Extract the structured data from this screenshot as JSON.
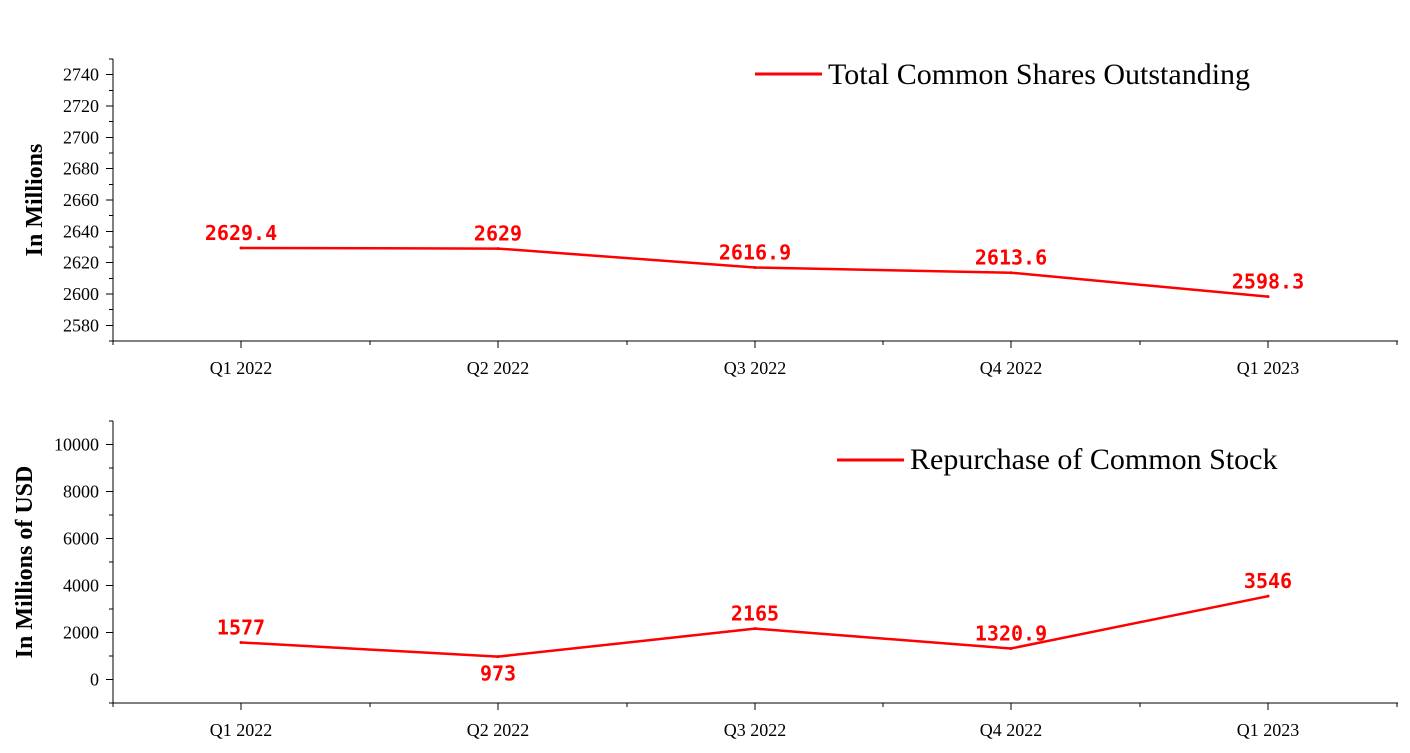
{
  "chart_data": [
    {
      "type": "line",
      "categories": [
        "Q1 2022",
        "Q2 2022",
        "Q3 2022",
        "Q4 2022",
        "Q1 2023"
      ],
      "series": [
        {
          "name": "Total Common Shares Outstanding",
          "values": [
            2629.4,
            2629,
            2616.9,
            2613.6,
            2598.3
          ],
          "color": "#ff0000"
        }
      ],
      "data_labels": [
        "2629.4",
        "2629",
        "2616.9",
        "2613.6",
        "2598.3"
      ],
      "ylabel": "In Millions",
      "yticks": [
        "2580",
        "2600",
        "2620",
        "2640",
        "2660",
        "2680",
        "2700",
        "2720",
        "2740"
      ],
      "ylim": [
        2570,
        2750
      ],
      "grid": false,
      "legend": "top-right"
    },
    {
      "type": "line",
      "categories": [
        "Q1 2022",
        "Q2 2022",
        "Q3 2022",
        "Q4 2022",
        "Q1 2023"
      ],
      "series": [
        {
          "name": "Repurchase of Common Stock",
          "values": [
            1577,
            973,
            2165,
            1320.9,
            3546
          ],
          "color": "#ff0000"
        }
      ],
      "data_labels": [
        "1577",
        "973",
        "2165",
        "1320.9",
        "3546"
      ],
      "ylabel": "In Millions of USD",
      "yticks": [
        "0",
        "2000",
        "4000",
        "6000",
        "8000",
        "10000"
      ],
      "ylim": [
        -1000,
        11000
      ],
      "grid": false,
      "legend": "top-right"
    }
  ]
}
